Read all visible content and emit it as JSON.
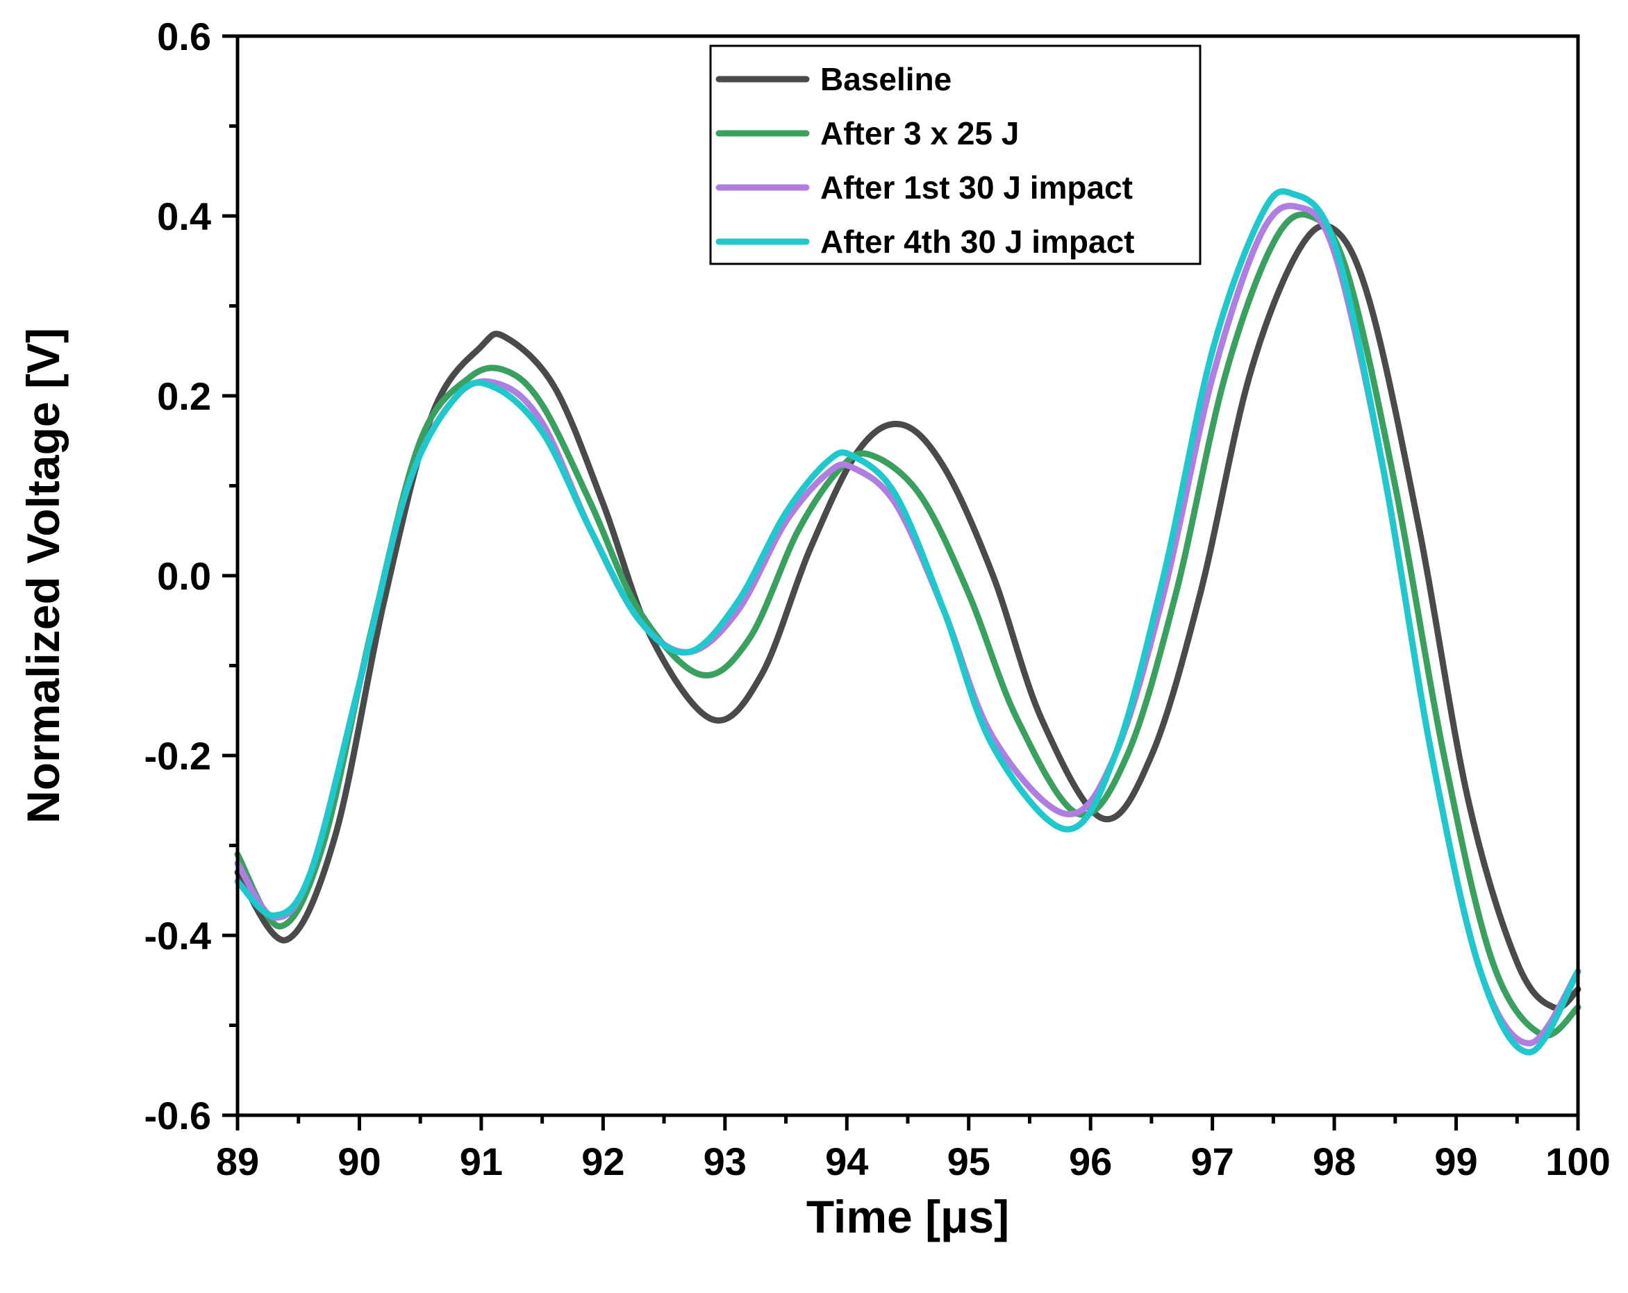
{
  "chart_data": {
    "type": "line",
    "title": "",
    "xlabel": "Time [μs]",
    "ylabel": "Normalized Voltage [V]",
    "xlim": [
      89,
      100
    ],
    "ylim": [
      -0.6,
      0.6
    ],
    "xticks": [
      89,
      90,
      91,
      92,
      93,
      94,
      95,
      96,
      97,
      98,
      99,
      100
    ],
    "xtick_labels": [
      "89",
      "90",
      "91",
      "92",
      "93",
      "94",
      "95",
      "96",
      "97",
      "98",
      "99",
      "100"
    ],
    "yticks": [
      -0.6,
      -0.4,
      -0.2,
      0.0,
      0.2,
      0.4,
      0.6
    ],
    "ytick_labels": [
      "-0.6",
      "-0.4",
      "-0.2",
      "0.0",
      "0.2",
      "0.4",
      "0.6"
    ],
    "grid": false,
    "legend_position": "top-center",
    "series": [
      {
        "name": "Baseline",
        "color": "#4a4a4a",
        "points": [
          [
            89.0,
            -0.33
          ],
          [
            89.4,
            -0.405
          ],
          [
            89.8,
            -0.29
          ],
          [
            90.2,
            -0.03
          ],
          [
            90.6,
            0.18
          ],
          [
            91.0,
            0.255
          ],
          [
            91.2,
            0.265
          ],
          [
            91.6,
            0.21
          ],
          [
            92.0,
            0.08
          ],
          [
            92.4,
            -0.07
          ],
          [
            92.9,
            -0.16
          ],
          [
            93.3,
            -0.11
          ],
          [
            93.7,
            0.03
          ],
          [
            94.1,
            0.14
          ],
          [
            94.45,
            0.168
          ],
          [
            94.8,
            0.12
          ],
          [
            95.2,
            0.0
          ],
          [
            95.6,
            -0.16
          ],
          [
            96.1,
            -0.27
          ],
          [
            96.5,
            -0.2
          ],
          [
            96.9,
            -0.02
          ],
          [
            97.3,
            0.22
          ],
          [
            97.7,
            0.36
          ],
          [
            98.0,
            0.385
          ],
          [
            98.3,
            0.3
          ],
          [
            98.7,
            0.05
          ],
          [
            99.1,
            -0.25
          ],
          [
            99.5,
            -0.43
          ],
          [
            99.8,
            -0.48
          ],
          [
            100.0,
            -0.46
          ]
        ]
      },
      {
        "name": "After 3 x 25 J",
        "color": "#3aa060",
        "points": [
          [
            89.0,
            -0.31
          ],
          [
            89.35,
            -0.39
          ],
          [
            89.7,
            -0.3
          ],
          [
            90.1,
            -0.06
          ],
          [
            90.5,
            0.15
          ],
          [
            90.9,
            0.22
          ],
          [
            91.2,
            0.228
          ],
          [
            91.5,
            0.19
          ],
          [
            91.9,
            0.08
          ],
          [
            92.3,
            -0.04
          ],
          [
            92.8,
            -0.11
          ],
          [
            93.2,
            -0.07
          ],
          [
            93.6,
            0.05
          ],
          [
            93.95,
            0.12
          ],
          [
            94.2,
            0.134
          ],
          [
            94.6,
            0.09
          ],
          [
            95.0,
            -0.02
          ],
          [
            95.4,
            -0.16
          ],
          [
            95.9,
            -0.265
          ],
          [
            96.3,
            -0.2
          ],
          [
            96.7,
            -0.02
          ],
          [
            97.1,
            0.22
          ],
          [
            97.5,
            0.37
          ],
          [
            97.8,
            0.4
          ],
          [
            98.1,
            0.34
          ],
          [
            98.5,
            0.1
          ],
          [
            98.9,
            -0.2
          ],
          [
            99.3,
            -0.43
          ],
          [
            99.7,
            -0.51
          ],
          [
            100.0,
            -0.48
          ]
        ]
      },
      {
        "name": "After 1st 30 J impact",
        "color": "#b07ee0",
        "points": [
          [
            89.0,
            -0.32
          ],
          [
            89.3,
            -0.38
          ],
          [
            89.6,
            -0.33
          ],
          [
            90.0,
            -0.12
          ],
          [
            90.4,
            0.1
          ],
          [
            90.8,
            0.2
          ],
          [
            91.15,
            0.213
          ],
          [
            91.5,
            0.17
          ],
          [
            91.9,
            0.05
          ],
          [
            92.3,
            -0.05
          ],
          [
            92.7,
            -0.085
          ],
          [
            93.1,
            -0.04
          ],
          [
            93.5,
            0.06
          ],
          [
            93.85,
            0.115
          ],
          [
            94.05,
            0.12
          ],
          [
            94.4,
            0.08
          ],
          [
            94.8,
            -0.04
          ],
          [
            95.2,
            -0.18
          ],
          [
            95.8,
            -0.265
          ],
          [
            96.2,
            -0.2
          ],
          [
            96.6,
            -0.02
          ],
          [
            97.0,
            0.22
          ],
          [
            97.4,
            0.38
          ],
          [
            97.7,
            0.41
          ],
          [
            98.0,
            0.36
          ],
          [
            98.4,
            0.12
          ],
          [
            98.8,
            -0.2
          ],
          [
            99.2,
            -0.44
          ],
          [
            99.6,
            -0.52
          ],
          [
            100.0,
            -0.44
          ]
        ]
      },
      {
        "name": "After 4th 30 J impact",
        "color": "#1ec8cc",
        "points": [
          [
            89.0,
            -0.34
          ],
          [
            89.3,
            -0.378
          ],
          [
            89.6,
            -0.33
          ],
          [
            90.0,
            -0.12
          ],
          [
            90.4,
            0.1
          ],
          [
            90.8,
            0.2
          ],
          [
            91.1,
            0.21
          ],
          [
            91.5,
            0.16
          ],
          [
            91.9,
            0.05
          ],
          [
            92.3,
            -0.05
          ],
          [
            92.7,
            -0.085
          ],
          [
            93.1,
            -0.03
          ],
          [
            93.5,
            0.07
          ],
          [
            93.85,
            0.128
          ],
          [
            94.05,
            0.133
          ],
          [
            94.4,
            0.09
          ],
          [
            94.8,
            -0.04
          ],
          [
            95.2,
            -0.19
          ],
          [
            95.8,
            -0.282
          ],
          [
            96.2,
            -0.2
          ],
          [
            96.6,
            0.0
          ],
          [
            97.0,
            0.25
          ],
          [
            97.4,
            0.4
          ],
          [
            97.65,
            0.425
          ],
          [
            98.0,
            0.37
          ],
          [
            98.4,
            0.12
          ],
          [
            98.8,
            -0.2
          ],
          [
            99.2,
            -0.44
          ],
          [
            99.6,
            -0.53
          ],
          [
            100.0,
            -0.44
          ]
        ]
      }
    ]
  }
}
